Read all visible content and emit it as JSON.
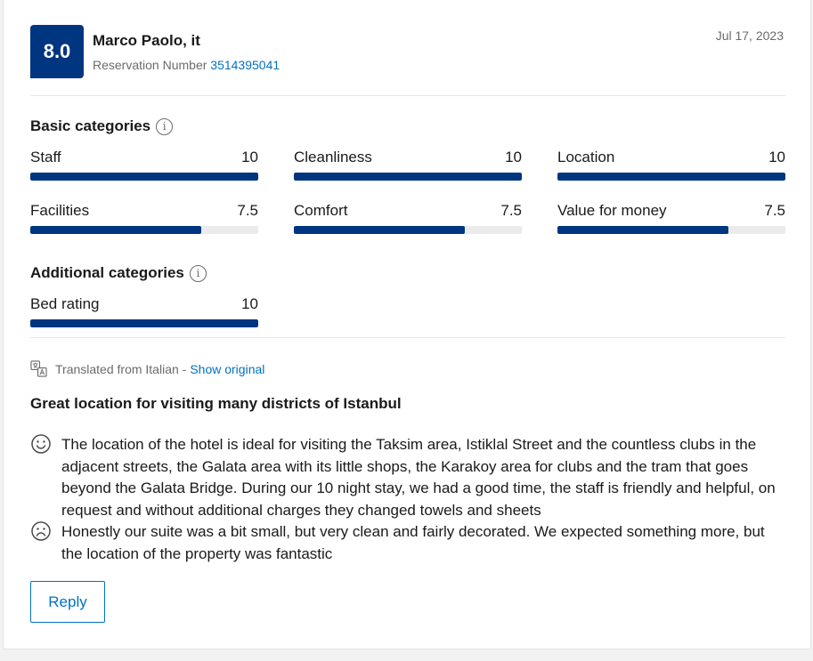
{
  "review": {
    "score": "8.0",
    "reviewer": "Marco Paolo, it",
    "reservation_label": "Reservation Number",
    "reservation_number": "3514395041",
    "date": "Jul 17, 2023"
  },
  "basic_categories": {
    "title": "Basic categories",
    "items": [
      {
        "label": "Staff",
        "score": "10",
        "fraction": 1.0
      },
      {
        "label": "Cleanliness",
        "score": "10",
        "fraction": 1.0
      },
      {
        "label": "Location",
        "score": "10",
        "fraction": 1.0
      },
      {
        "label": "Facilities",
        "score": "7.5",
        "fraction": 0.75
      },
      {
        "label": "Comfort",
        "score": "7.5",
        "fraction": 0.75
      },
      {
        "label": "Value for money",
        "score": "7.5",
        "fraction": 0.75
      }
    ]
  },
  "additional_categories": {
    "title": "Additional categories",
    "items": [
      {
        "label": "Bed rating",
        "score": "10",
        "fraction": 1.0
      }
    ]
  },
  "translation": {
    "text": "Translated from Italian -",
    "link": "Show original"
  },
  "content": {
    "title": "Great location for visiting many districts of Istanbul",
    "positive": "The location of the hotel is ideal for visiting the Taksim area, Istiklal Street and the countless clubs in the adjacent streets, the Galata area with its little shops, the Karakoy area for clubs and the tram that goes beyond the Galata Bridge. During our 10 night stay, we had a good time, the staff is friendly and helpful, on request and without additional charges they changed towels and sheets",
    "negative": "Honestly our suite was a bit small, but very clean and fairly decorated. We expected something more, but the location of the property was fantastic"
  },
  "actions": {
    "reply_label": "Reply"
  },
  "icons": {
    "info": "info-icon",
    "translate": "translate-icon",
    "positive": "smiley-face-icon",
    "negative": "sad-face-icon"
  },
  "colors": {
    "brand": "#003580",
    "link": "#0071c2",
    "track": "#ebebeb"
  }
}
